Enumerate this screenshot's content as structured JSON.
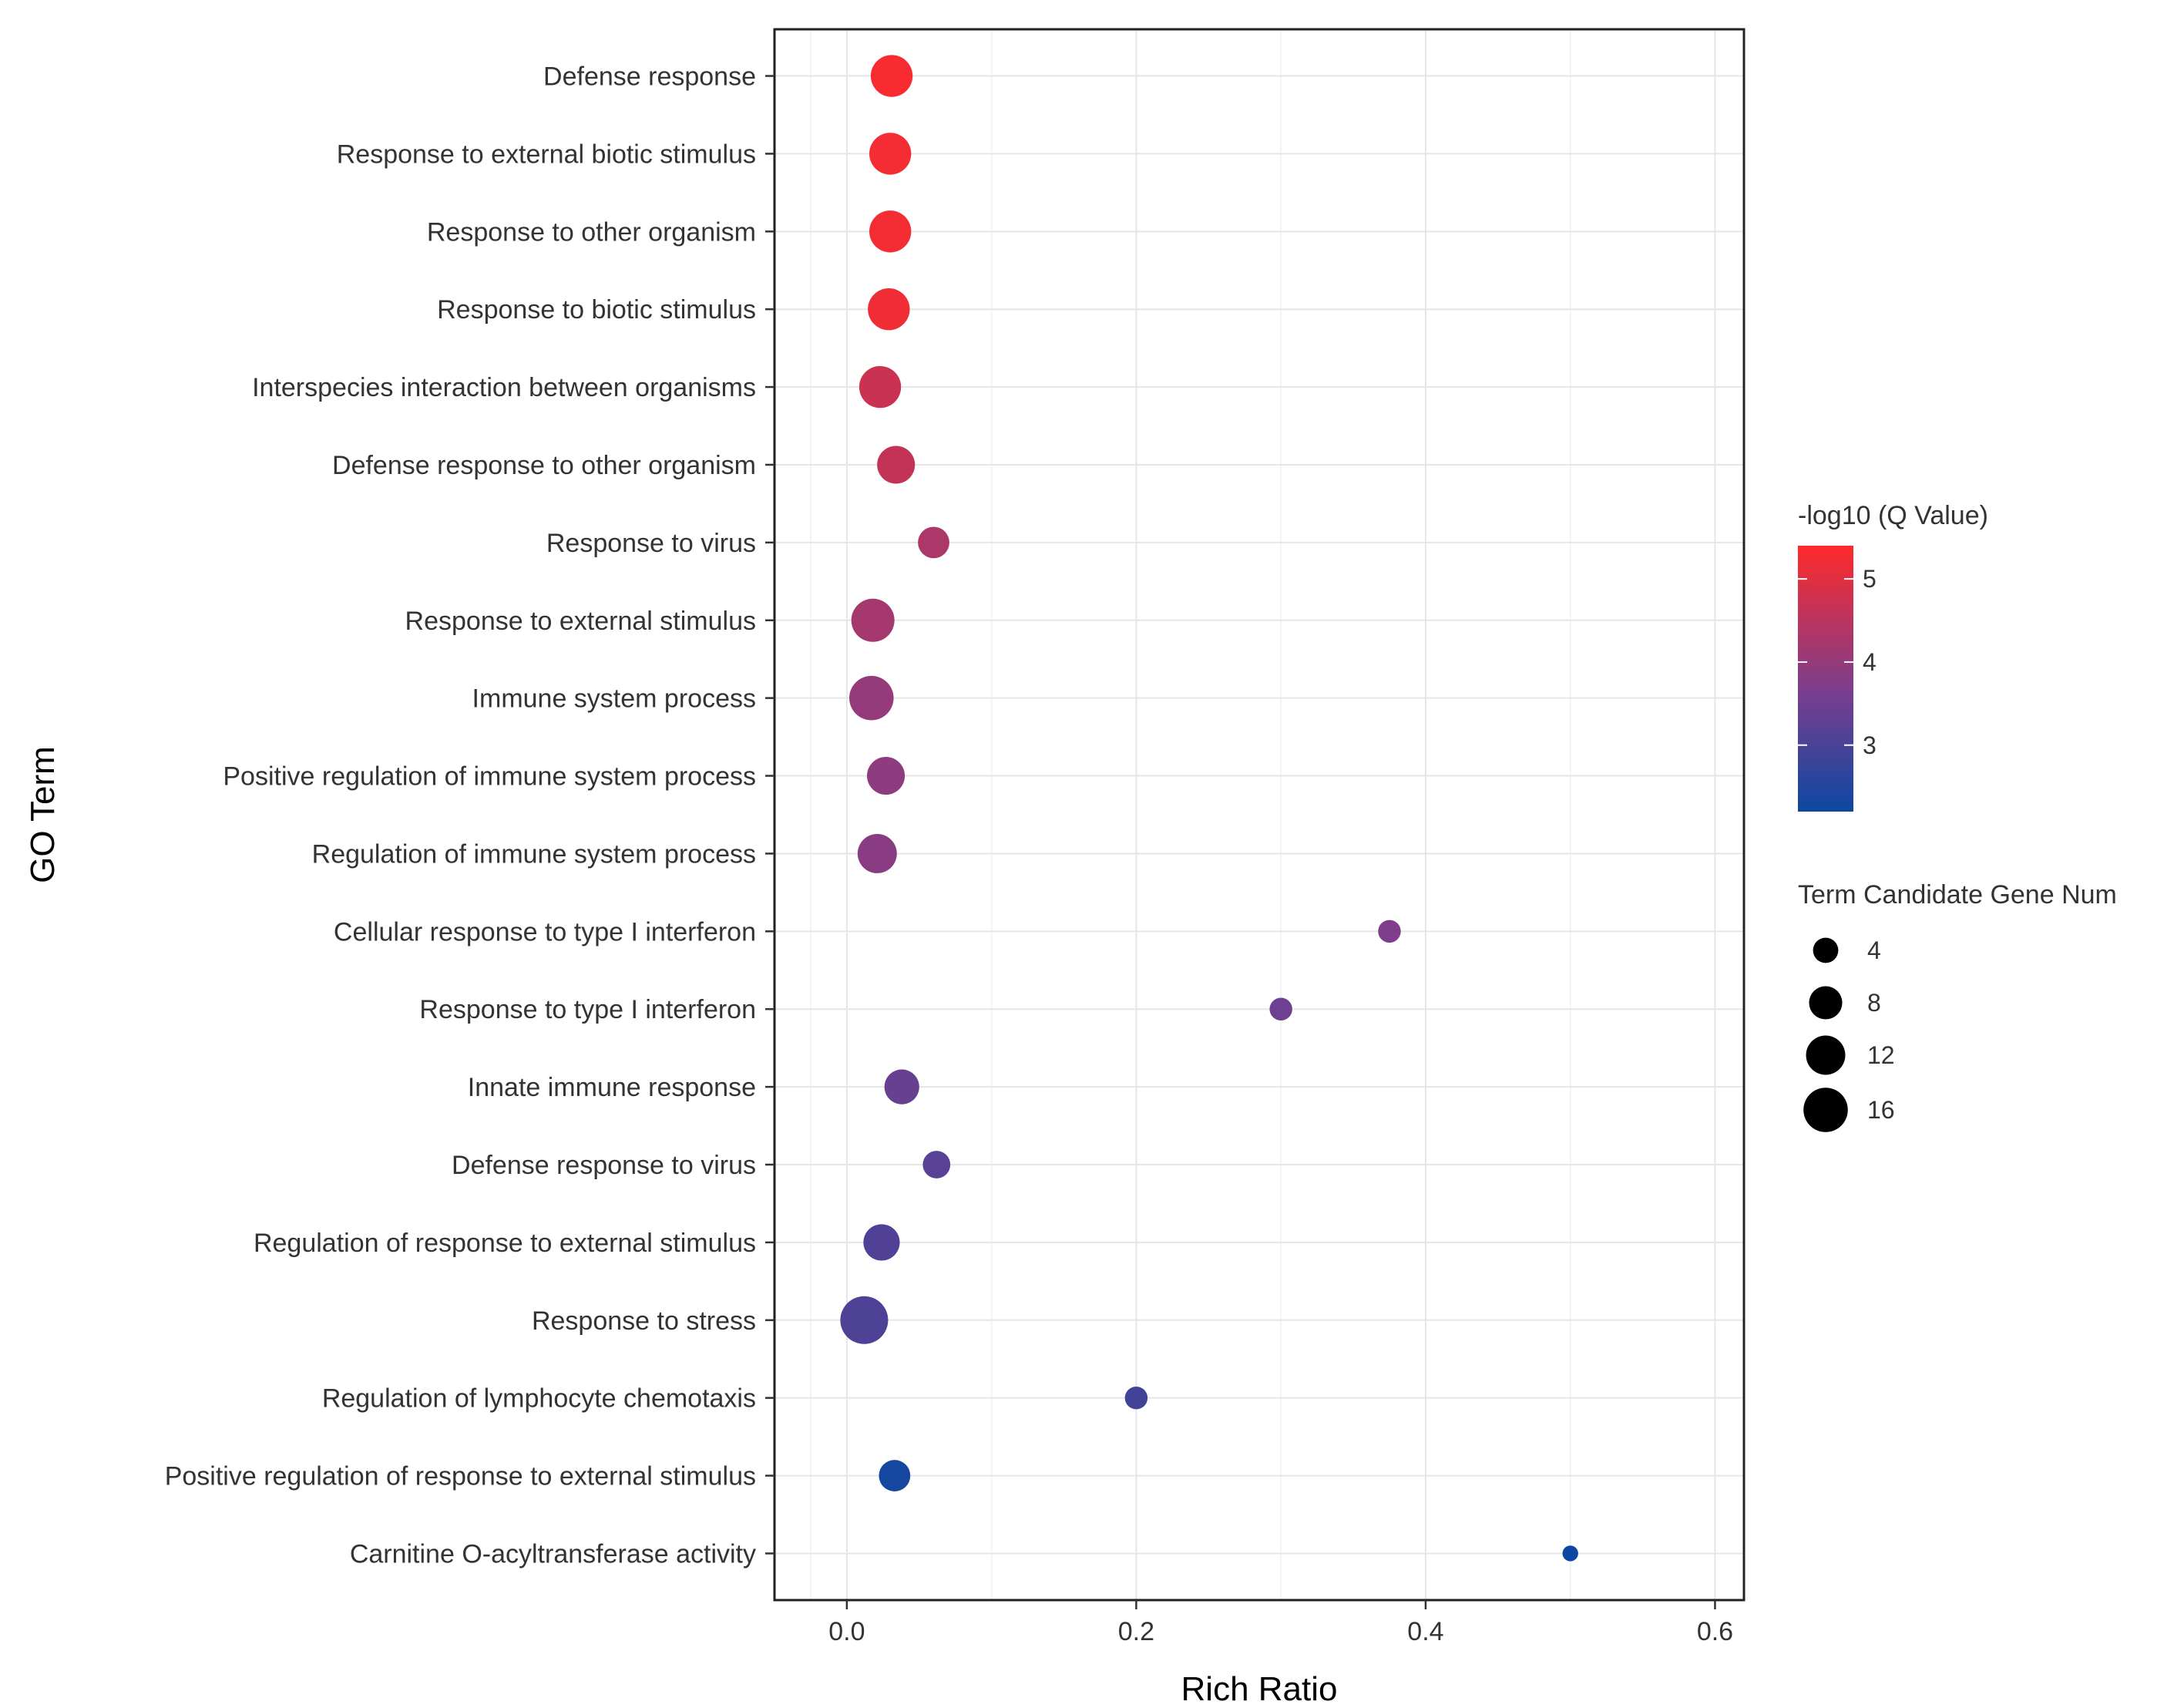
{
  "chart_data": {
    "type": "scatter",
    "title": "",
    "xlabel": "Rich Ratio",
    "ylabel": "GO Term",
    "xlim": [
      -0.05,
      0.62
    ],
    "x_ticks": [
      0.0,
      0.2,
      0.4,
      0.6
    ],
    "x_tick_labels": [
      "0.0",
      "0.2",
      "0.4",
      "0.6"
    ],
    "grid": true,
    "points": [
      {
        "term": "Defense response",
        "rich_ratio": 0.031,
        "neg_log10_q": 5.3,
        "gene_num": 14
      },
      {
        "term": "Response to external biotic stimulus",
        "rich_ratio": 0.03,
        "neg_log10_q": 5.25,
        "gene_num": 14
      },
      {
        "term": "Response to other organism",
        "rich_ratio": 0.03,
        "neg_log10_q": 5.25,
        "gene_num": 14
      },
      {
        "term": "Response to biotic stimulus",
        "rich_ratio": 0.029,
        "neg_log10_q": 5.2,
        "gene_num": 14
      },
      {
        "term": "Interspecies interaction between organisms",
        "rich_ratio": 0.023,
        "neg_log10_q": 4.7,
        "gene_num": 14
      },
      {
        "term": "Defense response to other organism",
        "rich_ratio": 0.034,
        "neg_log10_q": 4.6,
        "gene_num": 11
      },
      {
        "term": "Response to virus",
        "rich_ratio": 0.06,
        "neg_log10_q": 4.3,
        "gene_num": 7
      },
      {
        "term": "Response to external stimulus",
        "rich_ratio": 0.018,
        "neg_log10_q": 4.2,
        "gene_num": 15
      },
      {
        "term": "Immune system process",
        "rich_ratio": 0.017,
        "neg_log10_q": 4.0,
        "gene_num": 16
      },
      {
        "term": "Positive regulation of immune system process",
        "rich_ratio": 0.027,
        "neg_log10_q": 3.9,
        "gene_num": 11
      },
      {
        "term": "Regulation of immune system process",
        "rich_ratio": 0.021,
        "neg_log10_q": 3.85,
        "gene_num": 12
      },
      {
        "term": "Cellular response to type I interferon",
        "rich_ratio": 0.375,
        "neg_log10_q": 3.7,
        "gene_num": 3
      },
      {
        "term": "Response to type I interferon",
        "rich_ratio": 0.3,
        "neg_log10_q": 3.5,
        "gene_num": 3
      },
      {
        "term": "Innate immune response",
        "rich_ratio": 0.038,
        "neg_log10_q": 3.4,
        "gene_num": 9
      },
      {
        "term": "Defense response to virus",
        "rich_ratio": 0.062,
        "neg_log10_q": 3.2,
        "gene_num": 5
      },
      {
        "term": "Regulation of response to external stimulus",
        "rich_ratio": 0.024,
        "neg_log10_q": 3.1,
        "gene_num": 10
      },
      {
        "term": "Response to stress",
        "rich_ratio": 0.012,
        "neg_log10_q": 3.05,
        "gene_num": 19
      },
      {
        "term": "Regulation of lymphocyte chemotaxis",
        "rich_ratio": 0.2,
        "neg_log10_q": 2.9,
        "gene_num": 3
      },
      {
        "term": "Positive regulation of response to external stimulus",
        "rich_ratio": 0.033,
        "neg_log10_q": 2.3,
        "gene_num": 7
      },
      {
        "term": "Carnitine O-acyltransferase activity",
        "rich_ratio": 0.5,
        "neg_log10_q": 2.2,
        "gene_num": 1
      }
    ],
    "color_legend": {
      "title": "-log10 (Q Value)",
      "min": 2.2,
      "max": 5.4,
      "ticks": [
        3,
        4,
        5
      ],
      "tick_labels": [
        "3",
        "4",
        "5"
      ],
      "low_color": "#0d47a1",
      "high_color": "#ff2a2a"
    },
    "size_legend": {
      "title": "Term Candidate Gene Num",
      "values": [
        4,
        8,
        12,
        16
      ],
      "labels": [
        "4",
        "8",
        "12",
        "16"
      ],
      "position": "right"
    }
  }
}
